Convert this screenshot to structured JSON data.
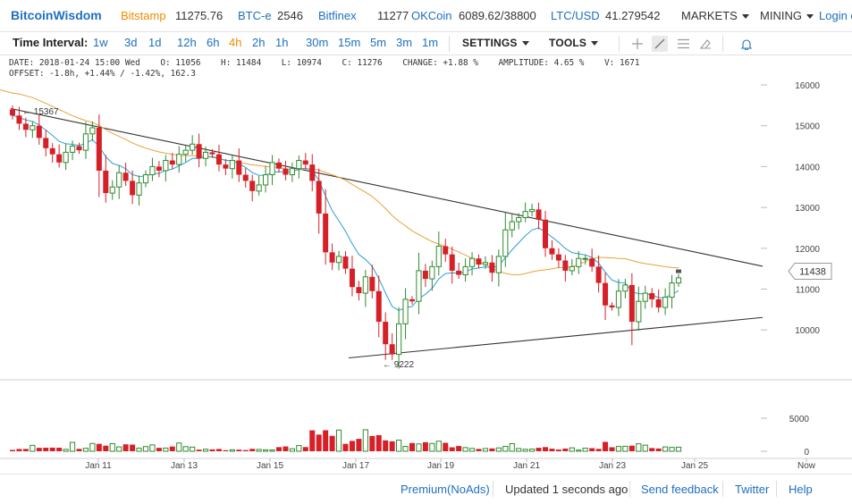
{
  "header": {
    "brand": "BitcoinWisdom",
    "tickers": [
      {
        "name": "Bitstamp",
        "value": "11275.76",
        "active": true
      },
      {
        "name": "BTC-e",
        "value": "2546"
      },
      {
        "name": "Bitfinex",
        "value": "11277"
      },
      {
        "name": "OKCoin",
        "value": "6089.62/38800"
      },
      {
        "name": "LTC/USD",
        "value": "41.279542"
      }
    ],
    "markets_label": "MARKETS",
    "mining_label": "MINING",
    "login_label": "Login o"
  },
  "toolbar": {
    "time_interval_label": "Time Interval:",
    "intervals": [
      "1w",
      "3d",
      "1d",
      "12h",
      "6h",
      "4h",
      "2h",
      "1h",
      "30m",
      "15m",
      "5m",
      "3m",
      "1m"
    ],
    "active_interval": "4h",
    "settings_label": "SETTINGS",
    "tools_label": "TOOLS",
    "icons": [
      "crosshair-icon",
      "line-tool-icon",
      "fib-lines-icon",
      "eraser-icon",
      "alert-bell-icon"
    ]
  },
  "info": {
    "line1": "DATE: 2018-01-24 15:00 Wed    O: 11056    H: 11484    L: 10974    C: 11276    CHANGE: +1.88 %    AMPLITUDE: 4.65 %    V: 1671",
    "line2": "OFFSET: -1.8h, +1.44% / -1.42%, 162.3"
  },
  "chart_data": {
    "type": "candlestick",
    "price_axis": {
      "min": 9000,
      "max": 16500,
      "ticks": [
        "16000",
        "15000",
        "14000",
        "13000",
        "12000",
        "11000",
        "10000"
      ]
    },
    "volume_axis": {
      "ticks": [
        "5000",
        "0"
      ]
    },
    "x_ticks": [
      "Jan 11",
      "Jan 13",
      "Jan 15",
      "Jan 17",
      "Jan 19",
      "Jan 21",
      "Jan 23",
      "Jan 25",
      "Now"
    ],
    "current_price_label": "11438",
    "annotations": [
      {
        "label": "15367",
        "value": 15367
      },
      {
        "label": "9222",
        "value": 9222
      }
    ],
    "colors": {
      "up": "#2e8b2e",
      "down": "#d62028",
      "ma_slow": "#e8a33a",
      "ma_fast": "#2a9fd6",
      "trendline": "#333333"
    },
    "closes": [
      15250,
      15050,
      14900,
      15000,
      14700,
      14450,
      14300,
      14100,
      14350,
      14500,
      14400,
      14800,
      14950,
      13900,
      13350,
      13500,
      13850,
      13650,
      13300,
      13600,
      13800,
      14000,
      13900,
      14150,
      14050,
      14300,
      14400,
      14550,
      14200,
      14350,
      14300,
      14050,
      13950,
      14150,
      13800,
      13650,
      13400,
      13550,
      13800,
      14100,
      13950,
      13800,
      13950,
      14150,
      14050,
      13650,
      12850,
      11900,
      11650,
      11800,
      11500,
      11050,
      10900,
      11300,
      10950,
      10200,
      9650,
      9400,
      10150,
      10750,
      10700,
      11450,
      11250,
      11550,
      12050,
      11850,
      11450,
      11350,
      11550,
      11750,
      11600,
      11650,
      11400,
      11800,
      12450,
      12650,
      12750,
      12900,
      12950,
      12700,
      12000,
      11850,
      11700,
      11450,
      11550,
      11750,
      11750,
      11550,
      11150,
      10600,
      10550,
      10950,
      11100,
      10200,
      10700,
      10900,
      10750,
      10550,
      10800,
      11150,
      11276
    ],
    "volumes": [
      200,
      350,
      350,
      900,
      520,
      540,
      550,
      540,
      290,
      1350,
      360,
      460,
      1180,
      1120,
      850,
      1150,
      660,
      1050,
      1010,
      480,
      710,
      960,
      520,
      490,
      720,
      1250,
      700,
      630,
      240,
      310,
      280,
      350,
      160,
      230,
      240,
      180,
      370,
      280,
      210,
      200,
      630,
      730,
      380,
      870,
      640,
      3170,
      2520,
      3180,
      2330,
      3210,
      1120,
      1570,
      1880,
      3250,
      2310,
      2440,
      1650,
      1500,
      1690,
      740,
      1250,
      1110,
      1370,
      1180,
      1530,
      1280,
      600,
      800,
      560,
      430,
      350,
      420,
      430,
      510,
      740,
      1150,
      420,
      300,
      330,
      530,
      630,
      390,
      260,
      410,
      520,
      190,
      470,
      470,
      360,
      1420,
      610,
      730,
      760,
      850,
      1130,
      930,
      490,
      420,
      660,
      590,
      620
    ]
  },
  "footer": {
    "premium_label": "Premium(NoAds)",
    "updated_text": "Updated 1 seconds ago",
    "feedback_label": "Send feedback",
    "twitter_label": "Twitter",
    "help_label": "Help"
  }
}
